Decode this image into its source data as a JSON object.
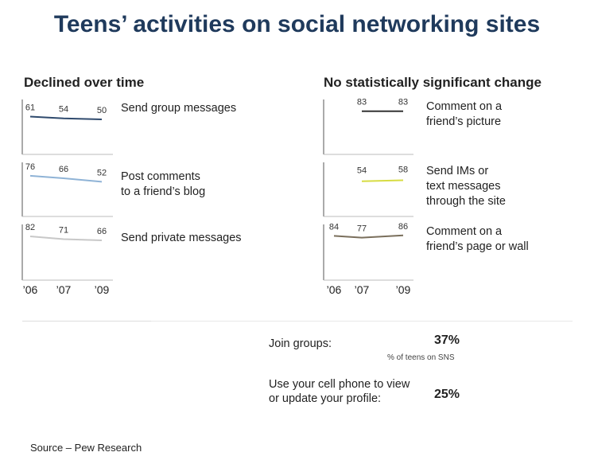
{
  "title": "Teens’ activities on social networking sites",
  "left_heading": "Declined over time",
  "right_heading": "No statistically significant change",
  "x_ticks": [
    "’06",
    "’07",
    "’09"
  ],
  "colors": {
    "title": "#1f3a5c",
    "group": "#2f4a6d",
    "blog": "#8fb3d6",
    "private": "#c8c8c8",
    "picture": "#333333",
    "ims": "#d7dc43",
    "wall": "#7a6f5c"
  },
  "chart_data": [
    {
      "type": "line",
      "group": "declined",
      "label": "Send group messages",
      "x": [
        "2006",
        "2007",
        "2009"
      ],
      "values": [
        61,
        54,
        50
      ],
      "ylim": [
        0,
        100
      ]
    },
    {
      "type": "line",
      "group": "declined",
      "label": "Post comments to a friend’s blog",
      "label_lines": [
        "Post comments",
        "to a friend’s blog"
      ],
      "x": [
        "2006",
        "2007",
        "2009"
      ],
      "values": [
        76,
        66,
        52
      ],
      "ylim": [
        0,
        100
      ]
    },
    {
      "type": "line",
      "group": "declined",
      "label": "Send private messages",
      "x": [
        "2006",
        "2007",
        "2009"
      ],
      "values": [
        82,
        71,
        66
      ],
      "ylim": [
        0,
        100
      ]
    },
    {
      "type": "line",
      "group": "no_change",
      "label": "Comment on a friend’s picture",
      "label_lines": [
        "Comment on a",
        "friend’s picture"
      ],
      "x": [
        "2007",
        "2009"
      ],
      "values": [
        83,
        83
      ],
      "ylim": [
        0,
        100
      ]
    },
    {
      "type": "line",
      "group": "no_change",
      "label": "Send IMs or text messages through the site",
      "label_lines": [
        "Send IMs or",
        "text messages",
        "through the site"
      ],
      "x": [
        "2007",
        "2009"
      ],
      "values": [
        54,
        58
      ],
      "ylim": [
        0,
        100
      ]
    },
    {
      "type": "line",
      "group": "no_change",
      "label": "Comment on a friend’s page or wall",
      "label_lines": [
        "Comment on a",
        "friend’s page or wall"
      ],
      "x": [
        "2006",
        "2007",
        "2009"
      ],
      "values": [
        84,
        77,
        86
      ],
      "ylim": [
        0,
        100
      ]
    }
  ],
  "stats": {
    "join_groups_label": "Join groups:",
    "join_groups_value": "37%",
    "note": "% of teens on SNS",
    "cell_phone_label_1": "Use your cell phone to view",
    "cell_phone_label_2": "or update your profile:",
    "cell_phone_value": "25%"
  },
  "source": "Source – Pew Research"
}
